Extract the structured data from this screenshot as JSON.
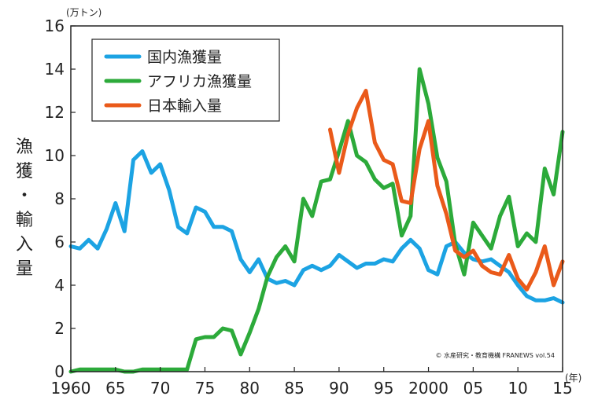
{
  "chart_data": {
    "type": "line",
    "unit_label": "(万トン)",
    "year_label": "(年)",
    "ylabel": "漁獲・輸入量",
    "ylim": [
      0,
      16
    ],
    "xlim": [
      1960,
      2015
    ],
    "y_ticks": [
      0,
      2,
      4,
      6,
      8,
      10,
      12,
      14,
      16
    ],
    "x_ticks": [
      {
        "x": 1960,
        "label": "1960"
      },
      {
        "x": 1965,
        "label": "65"
      },
      {
        "x": 1970,
        "label": "70"
      },
      {
        "x": 1975,
        "label": "75"
      },
      {
        "x": 1980,
        "label": "80"
      },
      {
        "x": 1985,
        "label": "85"
      },
      {
        "x": 1990,
        "label": "90"
      },
      {
        "x": 1995,
        "label": "95"
      },
      {
        "x": 2000,
        "label": "2000"
      },
      {
        "x": 2005,
        "label": "05"
      },
      {
        "x": 2010,
        "label": "10"
      },
      {
        "x": 2015,
        "label": "15"
      }
    ],
    "credit": "© 水産研究・教育機構 FRANEWS vol.54",
    "series": [
      {
        "name": "国内漁獲量",
        "color": "#1ca3e3",
        "x": [
          1960,
          1961,
          1962,
          1963,
          1964,
          1965,
          1966,
          1967,
          1968,
          1969,
          1970,
          1971,
          1972,
          1973,
          1974,
          1975,
          1976,
          1977,
          1978,
          1979,
          1980,
          1981,
          1982,
          1983,
          1984,
          1985,
          1986,
          1987,
          1988,
          1989,
          1990,
          1991,
          1992,
          1993,
          1994,
          1995,
          1996,
          1997,
          1998,
          1999,
          2000,
          2001,
          2002,
          2003,
          2004,
          2005,
          2006,
          2007,
          2008,
          2009,
          2010,
          2011,
          2012,
          2013,
          2014,
          2015
        ],
        "y": [
          5.8,
          5.7,
          6.1,
          5.7,
          6.6,
          7.8,
          6.5,
          9.8,
          10.2,
          9.2,
          9.6,
          8.4,
          6.7,
          6.4,
          7.6,
          7.4,
          6.7,
          6.7,
          6.5,
          5.2,
          4.6,
          5.2,
          4.3,
          4.1,
          4.2,
          4.0,
          4.7,
          4.9,
          4.7,
          4.9,
          5.4,
          5.1,
          4.8,
          5.0,
          5.0,
          5.2,
          5.1,
          5.7,
          6.1,
          5.7,
          4.7,
          4.5,
          5.8,
          6.0,
          5.5,
          5.2,
          5.1,
          5.2,
          4.9,
          4.6,
          4.0,
          3.5,
          3.3,
          3.3,
          3.4,
          3.2
        ]
      },
      {
        "name": "アフリカ漁獲量",
        "color": "#2caa3a",
        "x": [
          1960,
          1961,
          1962,
          1963,
          1964,
          1965,
          1966,
          1967,
          1968,
          1969,
          1970,
          1971,
          1972,
          1973,
          1974,
          1975,
          1976,
          1977,
          1978,
          1979,
          1980,
          1981,
          1982,
          1983,
          1984,
          1985,
          1986,
          1987,
          1988,
          1989,
          1990,
          1991,
          1992,
          1993,
          1994,
          1995,
          1996,
          1997,
          1998,
          1999,
          2000,
          2001,
          2002,
          2003,
          2004,
          2005,
          2006,
          2007,
          2008,
          2009,
          2010,
          2011,
          2012,
          2013,
          2014,
          2015
        ],
        "y": [
          0.0,
          0.1,
          0.1,
          0.1,
          0.1,
          0.1,
          0.0,
          0.0,
          0.1,
          0.1,
          0.1,
          0.1,
          0.1,
          0.1,
          1.5,
          1.6,
          1.6,
          2.0,
          1.9,
          0.8,
          1.8,
          2.9,
          4.4,
          5.3,
          5.8,
          5.1,
          8.0,
          7.2,
          8.8,
          8.9,
          10.2,
          11.6,
          10.0,
          9.7,
          8.9,
          8.5,
          8.7,
          6.3,
          7.2,
          14.0,
          12.4,
          9.9,
          8.8,
          5.9,
          4.5,
          6.9,
          6.3,
          5.7,
          7.2,
          8.1,
          5.8,
          6.4,
          6.0,
          9.4,
          8.2,
          11.1
        ]
      },
      {
        "name": "日本輸入量",
        "color": "#ea5a1a",
        "x": [
          1989,
          1990,
          1991,
          1992,
          1993,
          1994,
          1995,
          1996,
          1997,
          1998,
          1999,
          2000,
          2001,
          2002,
          2003,
          2004,
          2005,
          2006,
          2007,
          2008,
          2009,
          2010,
          2011,
          2012,
          2013,
          2014,
          2015
        ],
        "y": [
          11.2,
          9.2,
          11.0,
          12.2,
          13.0,
          10.6,
          9.8,
          9.6,
          7.9,
          7.8,
          10.3,
          11.6,
          8.6,
          7.3,
          5.6,
          5.3,
          5.6,
          4.9,
          4.6,
          4.5,
          5.4,
          4.3,
          3.8,
          4.6,
          5.8,
          4.0,
          5.1
        ]
      }
    ]
  }
}
